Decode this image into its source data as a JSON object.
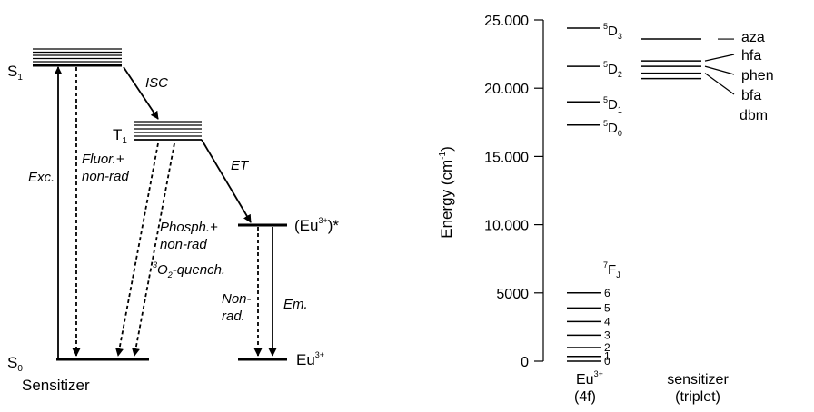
{
  "left": {
    "states": {
      "s1": "S",
      "s1_sub": "1",
      "t1": "T",
      "t1_sub": "1",
      "s0": "S",
      "s0_sub": "0",
      "eu_excited_a": "(Eu",
      "eu_excited_sup": "3+",
      "eu_excited_b": ")*",
      "eu_ground": "Eu",
      "eu_ground_sup": "3+"
    },
    "transitions": {
      "isc": "ISC",
      "exc": "Exc.",
      "fluor_1": "Fluor.+",
      "fluor_2": "non-rad",
      "et": "ET",
      "phosph_1": "Phosph.+",
      "phosph_2": "non-rad",
      "quench_sup": "3",
      "quench_a": "O",
      "quench_sub": "2",
      "quench_b": "-quench.",
      "nonrad_1": "Non-",
      "nonrad_2": "rad.",
      "em": "Em."
    },
    "caption": "Sensitizer"
  },
  "right": {
    "axis": {
      "label_a": "Energy (cm",
      "label_sup": "-1",
      "label_b": ")",
      "min": 0,
      "max": 25000,
      "ticks": [
        {
          "value": 0,
          "label": "0"
        },
        {
          "value": 5000,
          "label": "5000"
        },
        {
          "value": 10000,
          "label": "10.000"
        },
        {
          "value": 15000,
          "label": "15.000"
        },
        {
          "value": 20000,
          "label": "20.000"
        },
        {
          "value": 25000,
          "label": "25.000"
        }
      ]
    },
    "eu_levels": [
      {
        "energy": 24400,
        "sup": "5",
        "main": "D",
        "sub": "3"
      },
      {
        "energy": 21600,
        "sup": "5",
        "main": "D",
        "sub": "2"
      },
      {
        "energy": 19000,
        "sup": "5",
        "main": "D",
        "sub": "1"
      },
      {
        "energy": 17300,
        "sup": "5",
        "main": "D",
        "sub": "0"
      }
    ],
    "fj_label": {
      "sup": "7",
      "main": "F",
      "sub": "J"
    },
    "fj_levels": [
      {
        "energy": 5000,
        "j": "6"
      },
      {
        "energy": 3900,
        "j": "5"
      },
      {
        "energy": 2900,
        "j": "4"
      },
      {
        "energy": 1900,
        "j": "3"
      },
      {
        "energy": 1000,
        "j": "2"
      },
      {
        "energy": 350,
        "j": "1"
      },
      {
        "energy": 0,
        "j": "0"
      }
    ],
    "sensitizer_levels": [
      {
        "energy": 23600,
        "name": "aza"
      },
      {
        "energy": 22000,
        "name": "hfa"
      },
      {
        "energy": 21600,
        "name": "phen"
      },
      {
        "energy": 21100,
        "name": "bfa"
      },
      {
        "energy": 20700,
        "name": "dbm"
      }
    ],
    "eu_caption_main": "Eu",
    "eu_caption_sup": "3+",
    "eu_caption_sub": "(4f)",
    "sens_caption_main": "sensitizer",
    "sens_caption_sub": "(triplet)"
  }
}
